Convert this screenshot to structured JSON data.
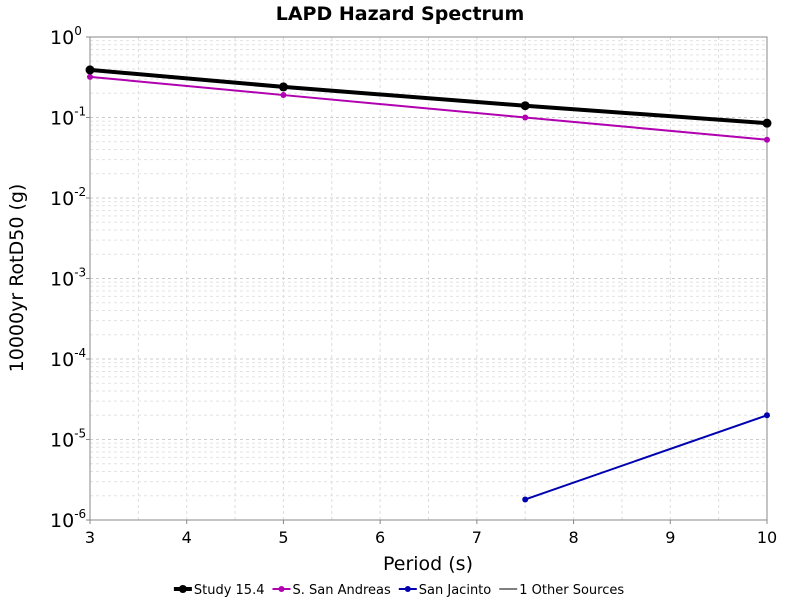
{
  "chart_data": {
    "type": "line",
    "title": "LAPD Hazard Spectrum",
    "xlabel": "Period (s)",
    "ylabel": "10000yr RotD50 (g)",
    "xlim": [
      3,
      10
    ],
    "ylim": [
      1e-06,
      1
    ],
    "yscale": "log",
    "grid": true,
    "legend_placement": "bottom",
    "x_ticks": [
      "3",
      "4",
      "5",
      "6",
      "7",
      "8",
      "9",
      "10"
    ],
    "y_ticks": [
      {
        "base": "10",
        "exp": "0",
        "value": 1
      },
      {
        "base": "10",
        "exp": "-1",
        "value": 0.1
      },
      {
        "base": "10",
        "exp": "-2",
        "value": 0.01
      },
      {
        "base": "10",
        "exp": "-3",
        "value": 0.001
      },
      {
        "base": "10",
        "exp": "-4",
        "value": 0.0001
      },
      {
        "base": "10",
        "exp": "-5",
        "value": 1e-05
      },
      {
        "base": "10",
        "exp": "-6",
        "value": 1e-06
      }
    ],
    "series": [
      {
        "name": "Study 15.4",
        "color": "#000000",
        "line_width": 4,
        "marker_size": 4.5,
        "x": [
          3,
          5,
          7.5,
          10
        ],
        "y": [
          0.39,
          0.24,
          0.14,
          0.085
        ]
      },
      {
        "name": "S. San Andreas",
        "color": "#b000b0",
        "line_width": 2,
        "marker_size": 3,
        "x": [
          3,
          5,
          7.5,
          10
        ],
        "y": [
          0.32,
          0.19,
          0.1,
          0.053
        ]
      },
      {
        "name": "San Jacinto",
        "color": "#0000b0",
        "line_width": 2,
        "marker_size": 3,
        "x": [
          7.5,
          10
        ],
        "y": [
          1.8e-06,
          2e-05
        ]
      },
      {
        "name": "1 Other Sources",
        "color": "#808080",
        "line_width": 2,
        "marker_size": 0,
        "x": [],
        "y": []
      }
    ]
  }
}
